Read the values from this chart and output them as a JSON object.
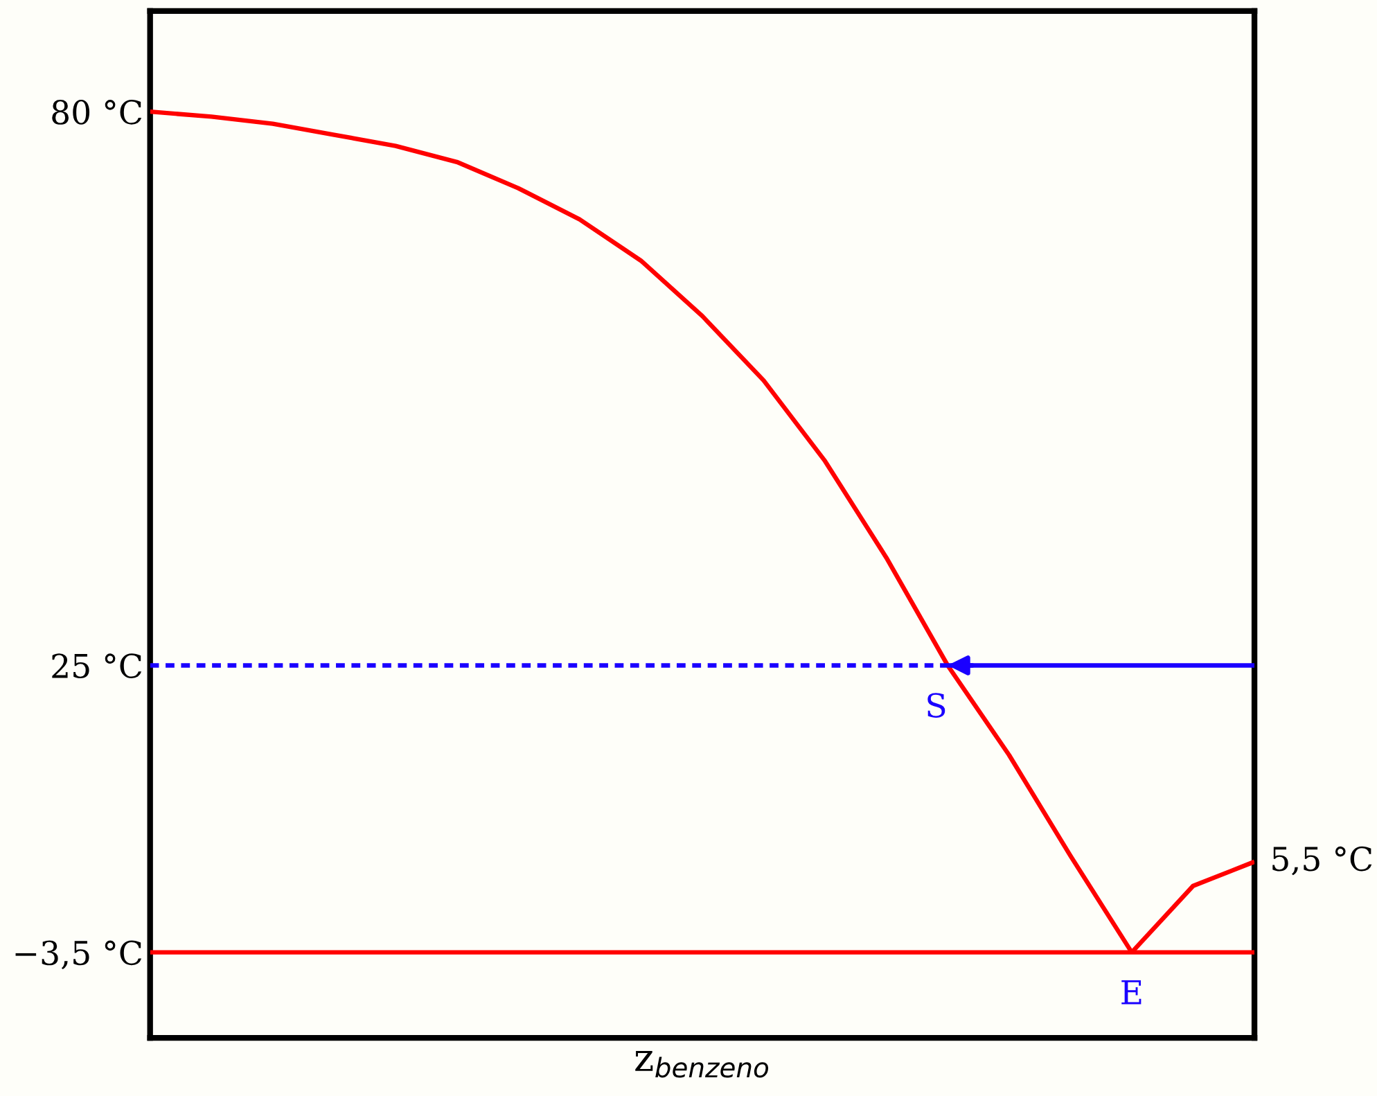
{
  "chart_data": {
    "type": "line",
    "xlabel": "z$_{benzeno}$",
    "categories": [
      null,
      null,
      null,
      null,
      null,
      null,
      null,
      null,
      null,
      null,
      null,
      null,
      null,
      null,
      null,
      null,
      null,
      null,
      null
    ],
    "ylim": [
      -12,
      90
    ],
    "yticks": [
      {
        "value": 80,
        "label": "80 °C"
      },
      {
        "value": 25,
        "label": "25 °C"
      },
      {
        "value": -3.5,
        "label": "−3,5 °C"
      }
    ],
    "tick_labels": "y",
    "grid": false,
    "legend": false,
    "marker": "none",
    "series": [
      {
        "color": "#ff0000",
        "line_style": "solid",
        "values": [
          80,
          79.5,
          78.8,
          77.7,
          76.6,
          75.0,
          72.4,
          69.3,
          65.2,
          59.7,
          53.3,
          45.3,
          35.7,
          25,
          16.1,
          6.1,
          -3.5,
          null,
          null
        ]
      },
      {
        "color": "#ff0000",
        "line_style": "solid",
        "values": [
          null,
          null,
          null,
          null,
          null,
          null,
          null,
          null,
          null,
          null,
          null,
          null,
          null,
          null,
          null,
          null,
          -3.5,
          3.1,
          5.5
        ]
      },
      {
        "color": "#ff0000",
        "line_style": "solid",
        "values": [
          -3.5,
          -3.5,
          -3.5,
          -3.5,
          -3.5,
          -3.5,
          -3.5,
          -3.5,
          -3.5,
          -3.5,
          -3.5,
          -3.5,
          -3.5,
          -3.5,
          -3.5,
          -3.5,
          -3.5,
          -3.5,
          -3.5
        ]
      },
      {
        "color": "#1a00ff",
        "line_style": "dashed",
        "values": [
          25,
          25,
          25,
          25,
          25,
          25,
          25,
          25,
          25,
          25,
          25,
          25,
          25,
          25,
          null,
          null,
          null,
          null,
          null
        ]
      },
      {
        "color": "#1a00ff",
        "line_style": "solid",
        "values": [
          null,
          null,
          null,
          null,
          null,
          null,
          null,
          null,
          null,
          null,
          null,
          null,
          null,
          25,
          25,
          25,
          25,
          25,
          25
        ]
      }
    ],
    "annotations": [
      {
        "text": "S",
        "y": 25
      },
      {
        "text": "E",
        "y": -3.5
      },
      "5,5 °C"
    ]
  }
}
